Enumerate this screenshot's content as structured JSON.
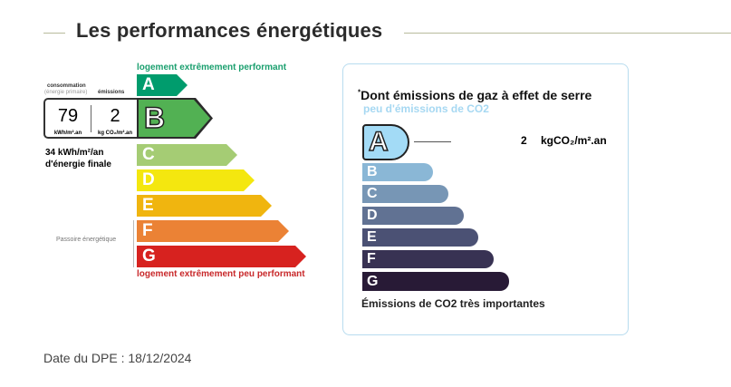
{
  "title": "Les performances énergétiques",
  "energy": {
    "top_label": "logement extrêmement performant",
    "bottom_label": "logement extrêmement peu performant",
    "consumption_label": "consommation",
    "consumption_sub": "(énergie primaire)",
    "emissions_label": "émissions",
    "consumption_value": "79",
    "consumption_unit": "kWh/m².an",
    "emissions_value": "2",
    "emissions_unit": "kg CO₂/m².an",
    "final_energy": "34 kWh/m²/an",
    "final_energy_label": "d'énergie finale",
    "passoire_label": "Passoire énergétique",
    "current_class": "B",
    "classes": [
      {
        "letter": "A",
        "color": "#009c6d"
      },
      {
        "letter": "B",
        "color": "#52b153"
      },
      {
        "letter": "C",
        "color": "#a5cc74"
      },
      {
        "letter": "D",
        "color": "#f4e70f"
      },
      {
        "letter": "E",
        "color": "#f0b50f"
      },
      {
        "letter": "F",
        "color": "#eb8235"
      },
      {
        "letter": "G",
        "color": "#d7221f"
      }
    ]
  },
  "ges": {
    "heading": "Dont émissions de gaz à effet de serre",
    "heading_mark": "*",
    "top_label": "peu d'émissions de CO2",
    "bottom_label": "Émissions de CO2 très importantes",
    "value": "2",
    "unit": "kgCO₂/m².an",
    "current_class": "A",
    "classes": [
      {
        "letter": "A",
        "color": "#a3dbf6"
      },
      {
        "letter": "B",
        "color": "#8ab7d6"
      },
      {
        "letter": "C",
        "color": "#7796b5"
      },
      {
        "letter": "D",
        "color": "#617293"
      },
      {
        "letter": "E",
        "color": "#4b5174"
      },
      {
        "letter": "F",
        "color": "#383253"
      },
      {
        "letter": "G",
        "color": "#281a36"
      }
    ]
  },
  "date": "Date du DPE : 18/12/2024"
}
